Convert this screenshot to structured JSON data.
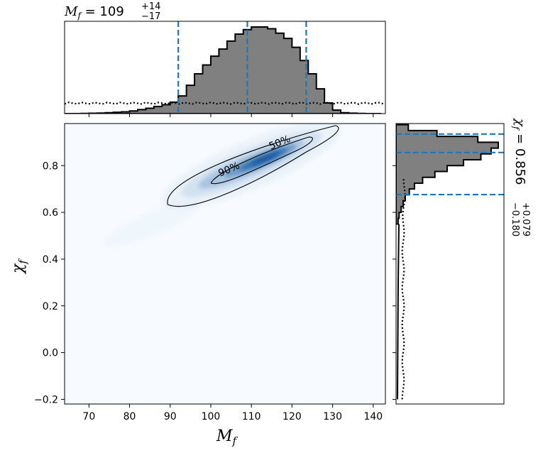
{
  "chart_data": {
    "type": "corner",
    "main": {
      "xlabel_symbol": "M",
      "xlabel_sub": "f",
      "ylabel_symbol": "χ",
      "ylabel_sub": "f",
      "xlim": [
        64,
        143
      ],
      "ylim": [
        -0.22,
        0.98
      ],
      "xticks": [
        70,
        80,
        90,
        100,
        110,
        120,
        130,
        140
      ],
      "yticks": [
        -0.2,
        0.0,
        0.2,
        0.4,
        0.6,
        0.8
      ],
      "ytick_labels": [
        "−0.2",
        "0.0",
        "0.2",
        "0.4",
        "0.6",
        "0.8"
      ],
      "colormap": "Blues",
      "density_ridge": {
        "x0": 89,
        "y0": 0.65,
        "x1": 131,
        "y1": 0.96
      },
      "contours": [
        {
          "label": "90%",
          "label_at": [
            104.5,
            0.77
          ]
        },
        {
          "label": "50%",
          "label_at": [
            117,
            0.885
          ]
        }
      ]
    },
    "top_histogram": {
      "title_prefix": "M",
      "title_sub": "f",
      "title_value": " = 109",
      "title_plus": "+14",
      "title_minus": "−17",
      "median": 109,
      "lower": 92,
      "upper": 123.5,
      "bin_edges": [
        64,
        66,
        68,
        70,
        72,
        74,
        76,
        78,
        80,
        82,
        84,
        86,
        88,
        90,
        92,
        94,
        96,
        98,
        100,
        102,
        104,
        106,
        108,
        110,
        112,
        114,
        116,
        118,
        120,
        122,
        124,
        126,
        128,
        130,
        132,
        134,
        136,
        138,
        140,
        142
      ],
      "counts": [
        0.0,
        0.0,
        0.002,
        0.004,
        0.006,
        0.01,
        0.015,
        0.02,
        0.03,
        0.045,
        0.06,
        0.08,
        0.1,
        0.13,
        0.2,
        0.32,
        0.45,
        0.55,
        0.65,
        0.73,
        0.82,
        0.9,
        0.95,
        0.98,
        0.98,
        0.96,
        0.91,
        0.85,
        0.75,
        0.6,
        0.45,
        0.28,
        0.12,
        0.04,
        0.01,
        0.005,
        0.002,
        0.0,
        0.0
      ],
      "prior_level": 0.12
    },
    "right_histogram": {
      "title_prefix": "χ",
      "title_sub": "f",
      "title_value": " = 0.856",
      "title_plus": "+0.079",
      "title_minus": "−0.180",
      "median": 0.856,
      "lower": 0.676,
      "upper": 0.935,
      "bin_edges": [
        0.55,
        0.575,
        0.6,
        0.625,
        0.65,
        0.675,
        0.7,
        0.725,
        0.75,
        0.775,
        0.8,
        0.825,
        0.85,
        0.875,
        0.9,
        0.925,
        0.95,
        0.975
      ],
      "counts": [
        0.02,
        0.03,
        0.05,
        0.07,
        0.09,
        0.13,
        0.18,
        0.26,
        0.38,
        0.5,
        0.66,
        0.83,
        0.93,
        1.0,
        0.8,
        0.4,
        0.12
      ],
      "prior_level": 0.05
    },
    "colors": {
      "hist_fill": "#808080",
      "hist_edge": "#000000",
      "quantile_line": "#1f77b4",
      "density_light": "#f7fbff",
      "density_dark": "#08519c"
    }
  }
}
